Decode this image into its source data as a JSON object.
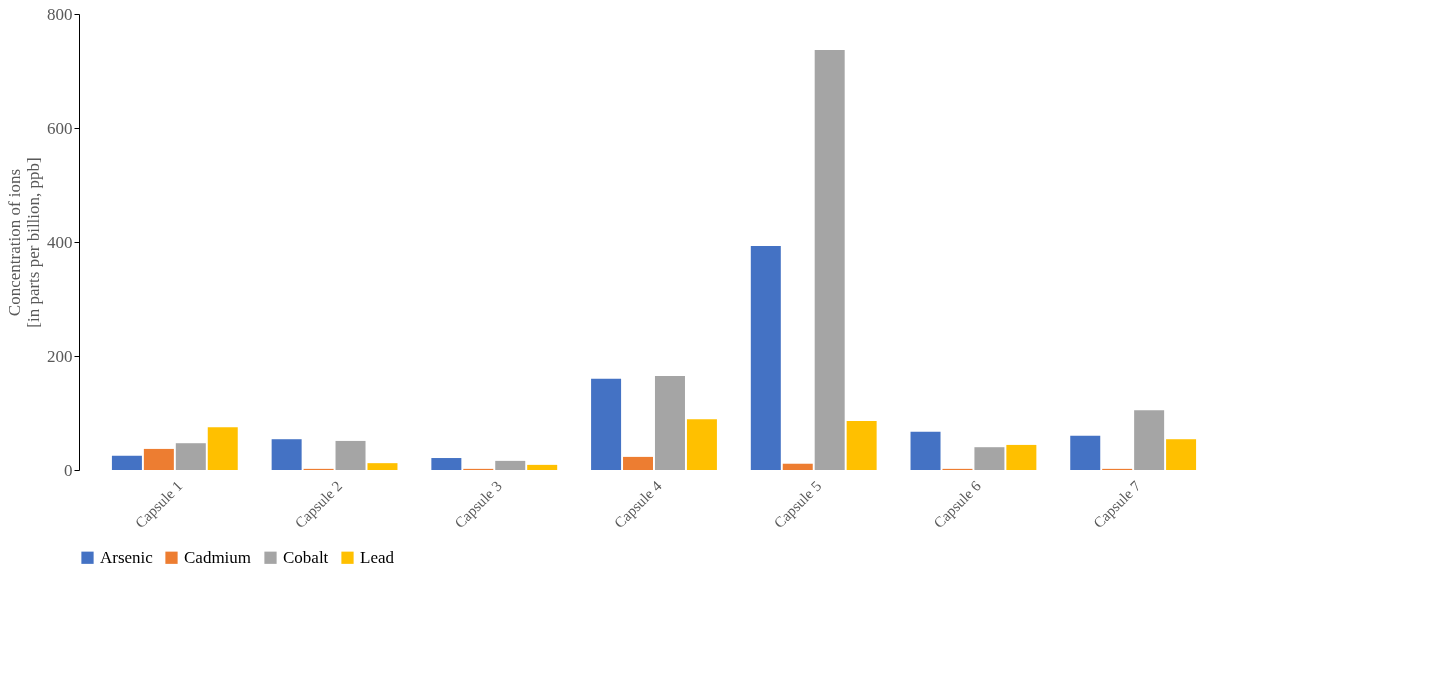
{
  "chart_data": {
    "type": "bar",
    "ylabel": "Concentration of ions\n[in parts per billion, ppb]",
    "categories": [
      "Capsule 1",
      "Capsule 2",
      "Capsule 3",
      "Capsule 4",
      "Capsule 5",
      "Capsule 6",
      "Capsule 7"
    ],
    "series": [
      {
        "name": "Arsenic",
        "color": "#4472c4",
        "values": [
          25,
          54,
          21,
          160,
          393,
          67,
          60
        ]
      },
      {
        "name": "Cadmium",
        "color": "#ed7d31",
        "values": [
          37,
          2,
          2,
          23,
          11,
          2,
          2
        ]
      },
      {
        "name": "Cobalt",
        "color": "#a5a5a5",
        "values": [
          47,
          51,
          16,
          165,
          737,
          40,
          105
        ]
      },
      {
        "name": "Lead",
        "color": "#ffc000",
        "values": [
          75,
          12,
          9,
          89,
          86,
          44,
          54
        ]
      }
    ],
    "ylim": [
      0,
      800
    ],
    "yticks": [
      0,
      200,
      400,
      600,
      800
    ],
    "grid": false,
    "legend": "bottom"
  }
}
